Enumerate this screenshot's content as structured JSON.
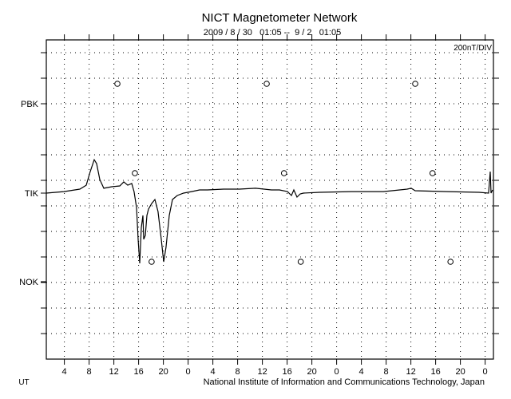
{
  "chart_data": {
    "type": "line",
    "title": "NICT Magnetometer Network",
    "subtitle": "2009 / 8 / 30   01:05 --  9 / 2   01:05",
    "scale_label": "200nT/DIV",
    "footer": "National Institute of Information and Communications Technology, Japan",
    "xlabel": "UT",
    "x_unit": "hours since 2009-08-30 00:00 UT",
    "xlim": [
      1.083,
      73.25
    ],
    "x_ticks": [
      4,
      8,
      12,
      16,
      20,
      24,
      28,
      32,
      36,
      40,
      44,
      48,
      52,
      56,
      60,
      64,
      68,
      72
    ],
    "x_tick_labels": [
      "4",
      "8",
      "12",
      "16",
      "20",
      "0",
      "4",
      "8",
      "12",
      "16",
      "20",
      "0",
      "4",
      "8",
      "12",
      "16",
      "20",
      "0"
    ],
    "y_unit": "nT per station offset",
    "nT_per_div": 200,
    "grid": true,
    "stations": [
      {
        "name": "PBK",
        "marker_hours": [
          12.57,
          36.7,
          60.7
        ],
        "values": []
      },
      {
        "name": "TIK",
        "marker_hours": [
          15.4,
          39.5,
          63.5
        ],
        "x": [
          1.08,
          3.92,
          6.5,
          7.53,
          8.18,
          8.82,
          9.21,
          9.73,
          10.37,
          11.66,
          12.95,
          13.6,
          14.24,
          14.89,
          15.27,
          15.66,
          15.92,
          16.18,
          16.44,
          16.69,
          16.82,
          17.08,
          17.34,
          17.6,
          18.11,
          18.63,
          19.14,
          19.66,
          20.05,
          20.43,
          20.95,
          21.47,
          22.24,
          23.27,
          24.56,
          25.85,
          27.14,
          29.73,
          32.31,
          34.89,
          37.47,
          38.76,
          40.05,
          40.69,
          41.08,
          41.6,
          42.11,
          42.63,
          45.21,
          50.37,
          55.53,
          59.4,
          60.05,
          60.69,
          65.85,
          71.02,
          72.56,
          72.82,
          72.95,
          73.2
        ],
        "values": [
          0,
          12,
          31,
          62,
          169,
          262,
          231,
          106,
          38,
          50,
          56,
          88,
          62,
          75,
          12,
          -112,
          -362,
          -550,
          -269,
          -175,
          -362,
          -331,
          -175,
          -125,
          -81,
          -50,
          -144,
          -362,
          -538,
          -425,
          -175,
          -50,
          -19,
          0,
          12,
          25,
          25,
          31,
          31,
          38,
          25,
          25,
          12,
          -19,
          25,
          -31,
          -6,
          0,
          6,
          12,
          12,
          31,
          38,
          19,
          12,
          6,
          0,
          169,
          0,
          25
        ]
      },
      {
        "name": "NOK",
        "marker_hours": [
          18.1,
          42.2,
          66.4
        ],
        "values": []
      }
    ]
  }
}
